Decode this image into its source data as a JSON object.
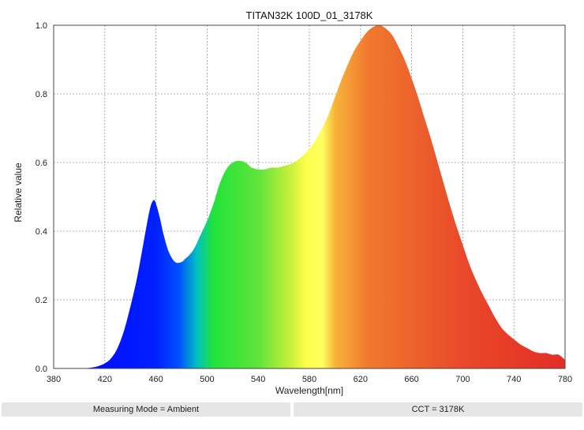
{
  "chart_data": {
    "type": "area",
    "title": "TITAN32K 100D_01_3178K",
    "xlabel": "Wavelength[nm]",
    "ylabel": "Relative value",
    "xlim": [
      380,
      780
    ],
    "ylim": [
      0,
      1.0
    ],
    "x_ticks": [
      "380",
      "420",
      "460",
      "500",
      "540",
      "580",
      "620",
      "660",
      "700",
      "740",
      "780"
    ],
    "y_ticks": [
      "0.0",
      "0.2",
      "0.4",
      "0.6",
      "0.8",
      "1.0"
    ],
    "grid": true,
    "series": [
      {
        "x": [
          380,
          400,
          410,
          415,
          420,
          425,
          430,
          435,
          440,
          445,
          450,
          455,
          458,
          460,
          463,
          466,
          470,
          475,
          480,
          483,
          486,
          490,
          495,
          500,
          505,
          510,
          515,
          520,
          525,
          530,
          535,
          540,
          545,
          550,
          555,
          560,
          565,
          570,
          575,
          580,
          585,
          590,
          595,
          600,
          605,
          610,
          615,
          620,
          625,
          630,
          635,
          640,
          645,
          650,
          655,
          660,
          665,
          670,
          675,
          680,
          685,
          690,
          695,
          700,
          705,
          710,
          715,
          720,
          725,
          730,
          735,
          740,
          745,
          750,
          755,
          760,
          765,
          770,
          775,
          780
        ],
        "y": [
          0.0,
          0.0,
          0.003,
          0.007,
          0.015,
          0.03,
          0.06,
          0.11,
          0.18,
          0.26,
          0.36,
          0.46,
          0.49,
          0.48,
          0.44,
          0.39,
          0.34,
          0.31,
          0.31,
          0.32,
          0.33,
          0.35,
          0.39,
          0.43,
          0.48,
          0.54,
          0.58,
          0.6,
          0.605,
          0.6,
          0.585,
          0.58,
          0.58,
          0.585,
          0.585,
          0.59,
          0.595,
          0.605,
          0.62,
          0.64,
          0.665,
          0.7,
          0.74,
          0.79,
          0.84,
          0.885,
          0.925,
          0.955,
          0.98,
          0.995,
          1.0,
          0.99,
          0.97,
          0.935,
          0.895,
          0.845,
          0.79,
          0.73,
          0.67,
          0.605,
          0.54,
          0.475,
          0.415,
          0.36,
          0.305,
          0.26,
          0.22,
          0.185,
          0.15,
          0.12,
          0.1,
          0.085,
          0.07,
          0.06,
          0.05,
          0.045,
          0.045,
          0.04,
          0.04,
          0.025
        ]
      }
    ],
    "fill_stops": [
      {
        "nm": 380,
        "color": "#0000ff"
      },
      {
        "nm": 460,
        "color": "#0020ff"
      },
      {
        "nm": 478,
        "color": "#0050ff"
      },
      {
        "nm": 492,
        "color": "#00c0c0"
      },
      {
        "nm": 505,
        "color": "#22e33a"
      },
      {
        "nm": 540,
        "color": "#5fe43a"
      },
      {
        "nm": 565,
        "color": "#c8f03a"
      },
      {
        "nm": 578,
        "color": "#ffff4a"
      },
      {
        "nm": 590,
        "color": "#ffff60"
      },
      {
        "nm": 600,
        "color": "#f7b43a"
      },
      {
        "nm": 625,
        "color": "#f07a2e"
      },
      {
        "nm": 700,
        "color": "#e9492a"
      },
      {
        "nm": 780,
        "color": "#e32d26"
      }
    ]
  },
  "footer": {
    "left_text": "Measuring Mode = Ambient",
    "right_text": "CCT = 3178K"
  }
}
